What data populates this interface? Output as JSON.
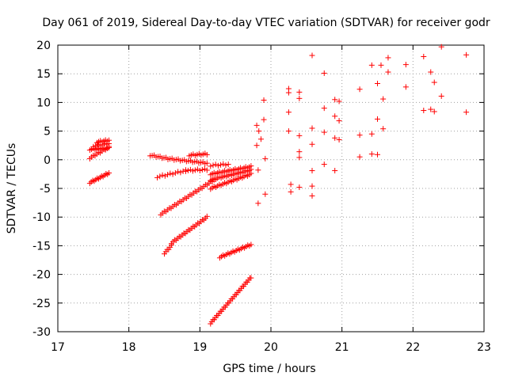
{
  "chart_data": {
    "type": "scatter",
    "title": "Day 061 of 2019, Sidereal Day-to-day VTEC variation (SDTVAR) for receiver godr",
    "xlabel": "GPS time / hours",
    "ylabel": "SDTVAR / TECUs",
    "xlim": [
      17,
      23
    ],
    "ylim": [
      -30,
      20
    ],
    "xticks": [
      17,
      18,
      19,
      20,
      21,
      22,
      23
    ],
    "yticks": [
      -30,
      -25,
      -20,
      -15,
      -10,
      -5,
      0,
      5,
      10,
      15,
      20
    ],
    "xtick_labels": [
      "17",
      "18",
      "19",
      "20",
      "21",
      "22",
      "23"
    ],
    "ytick_labels": [
      "-30",
      "-25",
      "-20",
      "-15",
      "-10",
      "-5",
      "0",
      "5",
      "10",
      "15",
      "20"
    ],
    "grid": true,
    "marker": "+",
    "color": "#ff0000",
    "segments": [
      {
        "x0": 17.45,
        "x1": 17.72,
        "y0": -4.0,
        "y1": -2.3,
        "n": 14
      },
      {
        "x0": 17.45,
        "x1": 17.72,
        "y0": 0.3,
        "y1": 2.2,
        "n": 12
      },
      {
        "x0": 17.45,
        "x1": 17.72,
        "y0": 1.8,
        "y1": 2.0,
        "n": 12
      },
      {
        "x0": 17.55,
        "x1": 17.72,
        "y0": 3.1,
        "y1": 3.4,
        "n": 8
      },
      {
        "x0": 17.5,
        "x1": 17.72,
        "y0": 2.4,
        "y1": 2.8,
        "n": 8
      },
      {
        "x0": 18.3,
        "x1": 18.55,
        "y0": 0.8,
        "y1": 0.2,
        "n": 10
      },
      {
        "x0": 18.55,
        "x1": 19.1,
        "y0": 0.2,
        "y1": -0.6,
        "n": 20
      },
      {
        "x0": 18.85,
        "x1": 19.1,
        "y0": 0.8,
        "y1": 1.0,
        "n": 10
      },
      {
        "x0": 18.4,
        "x1": 18.8,
        "y0": -3.0,
        "y1": -1.9,
        "n": 12
      },
      {
        "x0": 18.8,
        "x1": 19.1,
        "y0": -1.9,
        "y1": -1.7,
        "n": 10
      },
      {
        "x0": 18.45,
        "x1": 19.2,
        "y0": -9.5,
        "y1": -3.5,
        "n": 32
      },
      {
        "x0": 18.5,
        "x1": 18.6,
        "y0": -16.3,
        "y1": -15.0,
        "n": 6
      },
      {
        "x0": 18.6,
        "x1": 19.1,
        "y0": -14.5,
        "y1": -10.0,
        "n": 24
      },
      {
        "x0": 19.15,
        "x1": 19.72,
        "y0": -2.5,
        "y1": -1.2,
        "n": 24
      },
      {
        "x0": 19.15,
        "x1": 19.72,
        "y0": -3.5,
        "y1": -1.8,
        "n": 24
      },
      {
        "x0": 19.15,
        "x1": 19.72,
        "y0": -5.0,
        "y1": -2.5,
        "n": 24
      },
      {
        "x0": 19.15,
        "x1": 19.4,
        "y0": -1.0,
        "y1": -0.8,
        "n": 8
      },
      {
        "x0": 19.28,
        "x1": 19.72,
        "y0": -17.0,
        "y1": -14.8,
        "n": 20
      },
      {
        "x0": 19.15,
        "x1": 19.72,
        "y0": -28.5,
        "y1": -20.5,
        "n": 34
      }
    ],
    "scatter_points": [
      [
        19.8,
        6.0
      ],
      [
        19.83,
        5.0
      ],
      [
        19.8,
        2.5
      ],
      [
        19.86,
        3.6
      ],
      [
        19.9,
        7.0
      ],
      [
        19.9,
        10.4
      ],
      [
        19.82,
        -1.8
      ],
      [
        19.82,
        -7.6
      ],
      [
        19.92,
        -6.0
      ],
      [
        19.92,
        0.2
      ],
      [
        20.25,
        12.4
      ],
      [
        20.25,
        11.7
      ],
      [
        20.25,
        8.3
      ],
      [
        20.25,
        5.0
      ],
      [
        20.28,
        -4.3
      ],
      [
        20.28,
        -5.6
      ],
      [
        20.4,
        11.8
      ],
      [
        20.4,
        10.7
      ],
      [
        20.4,
        4.2
      ],
      [
        20.4,
        1.4
      ],
      [
        20.4,
        0.4
      ],
      [
        20.4,
        -4.8
      ],
      [
        20.58,
        18.2
      ],
      [
        20.58,
        5.5
      ],
      [
        20.58,
        2.7
      ],
      [
        20.58,
        -1.9
      ],
      [
        20.58,
        -4.6
      ],
      [
        20.58,
        -6.3
      ],
      [
        20.75,
        15.1
      ],
      [
        20.75,
        9.0
      ],
      [
        20.75,
        4.8
      ],
      [
        20.75,
        -0.8
      ],
      [
        20.9,
        10.5
      ],
      [
        20.9,
        7.6
      ],
      [
        20.9,
        3.8
      ],
      [
        20.9,
        -1.9
      ],
      [
        20.96,
        10.2
      ],
      [
        20.96,
        6.8
      ],
      [
        20.96,
        3.5
      ],
      [
        21.25,
        12.3
      ],
      [
        21.25,
        4.3
      ],
      [
        21.25,
        0.5
      ],
      [
        21.42,
        16.5
      ],
      [
        21.42,
        4.5
      ],
      [
        21.42,
        1.0
      ],
      [
        21.5,
        13.3
      ],
      [
        21.5,
        7.1
      ],
      [
        21.5,
        0.9
      ],
      [
        21.55,
        16.5
      ],
      [
        21.58,
        10.6
      ],
      [
        21.58,
        5.4
      ],
      [
        21.65,
        17.8
      ],
      [
        21.65,
        15.3
      ],
      [
        21.9,
        16.6
      ],
      [
        21.9,
        12.7
      ],
      [
        22.15,
        18.0
      ],
      [
        22.15,
        8.6
      ],
      [
        22.25,
        15.3
      ],
      [
        22.25,
        8.8
      ],
      [
        22.3,
        13.5
      ],
      [
        22.3,
        8.4
      ],
      [
        22.4,
        19.7
      ],
      [
        22.4,
        11.1
      ],
      [
        22.75,
        18.3
      ],
      [
        22.75,
        8.3
      ]
    ]
  }
}
